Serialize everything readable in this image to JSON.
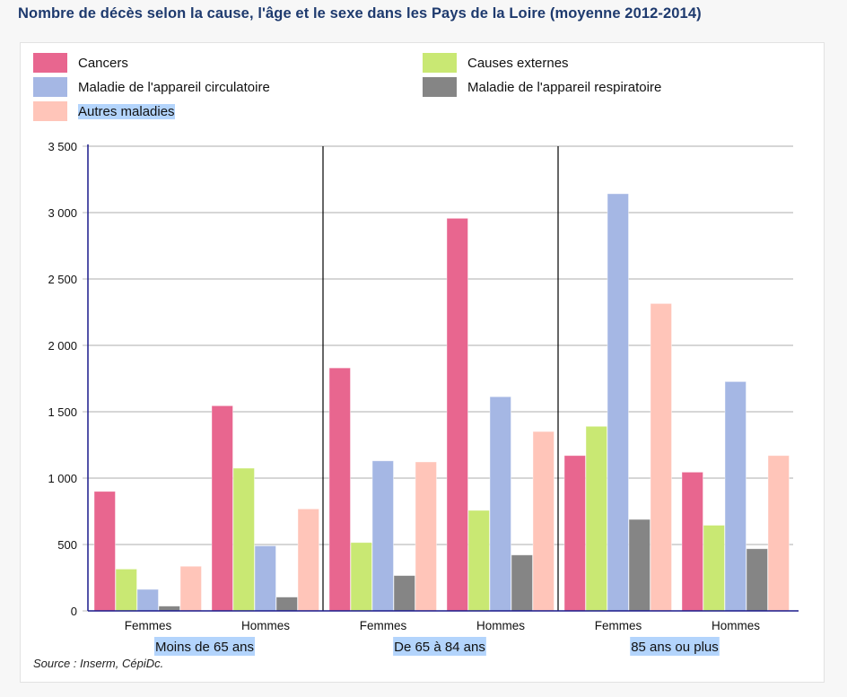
{
  "title": "Nombre de décès selon la cause, l'âge et le sexe dans les Pays de la Loire (moyenne 2012-2014)",
  "source": "Source : Inserm, CépiDc.",
  "chart_data": {
    "type": "bar",
    "title": "Nombre de décès selon la cause, l'âge et le sexe dans les Pays de la Loire (moyenne 2012-2014)",
    "xlabel": "",
    "ylabel": "",
    "ylim": [
      0,
      3500
    ],
    "yticks": [
      0,
      500,
      1000,
      1500,
      2000,
      2500,
      3000,
      3500
    ],
    "ytick_labels": [
      "0",
      "500",
      "1 000",
      "1 500",
      "2 000",
      "2 500",
      "3 000",
      "3 500"
    ],
    "grid": true,
    "legend_position": "top",
    "groups": [
      {
        "label": "Moins de 65 ans",
        "subcategories": [
          "Femmes",
          "Hommes"
        ]
      },
      {
        "label": "De 65 à 84 ans",
        "subcategories": [
          "Femmes",
          "Hommes"
        ]
      },
      {
        "label": "85 ans ou plus",
        "subcategories": [
          "Femmes",
          "Hommes"
        ]
      }
    ],
    "categories": [
      "Moins de 65 ans - Femmes",
      "Moins de 65 ans - Hommes",
      "De 65 à 84 ans - Femmes",
      "De 65 à 84 ans - Hommes",
      "85 ans ou plus - Femmes",
      "85 ans ou plus - Hommes"
    ],
    "series": [
      {
        "name": "Cancers",
        "color": "#e8668f",
        "values": [
          900,
          1545,
          1830,
          2957,
          1170,
          1045
        ]
      },
      {
        "name": "Causes externes",
        "color": "#c9e873",
        "values": [
          315,
          1075,
          515,
          757,
          1390,
          645
        ]
      },
      {
        "name": "Maladie de l'appareil circulatoire",
        "color": "#a5b7e4",
        "values": [
          162,
          490,
          1130,
          1613,
          3142,
          1727
        ]
      },
      {
        "name": "Maladie de l'appareil respiratoire",
        "color": "#858585",
        "values": [
          36,
          104,
          266,
          421,
          689,
          468
        ]
      },
      {
        "name": "Autres maladies",
        "color": "#ffc5b9",
        "values": [
          336,
          768,
          1122,
          1351,
          2315,
          1170
        ]
      }
    ]
  },
  "legend": {
    "items": [
      {
        "label": "Cancers",
        "color": "#e8668f"
      },
      {
        "label": "Causes externes",
        "color": "#c9e873"
      },
      {
        "label": "Maladie de l'appareil circulatoire",
        "color": "#a5b7e4"
      },
      {
        "label": "Maladie de l'appareil respiratoire",
        "color": "#858585"
      },
      {
        "label": "Autres maladies",
        "color": "#ffc5b9"
      }
    ]
  }
}
